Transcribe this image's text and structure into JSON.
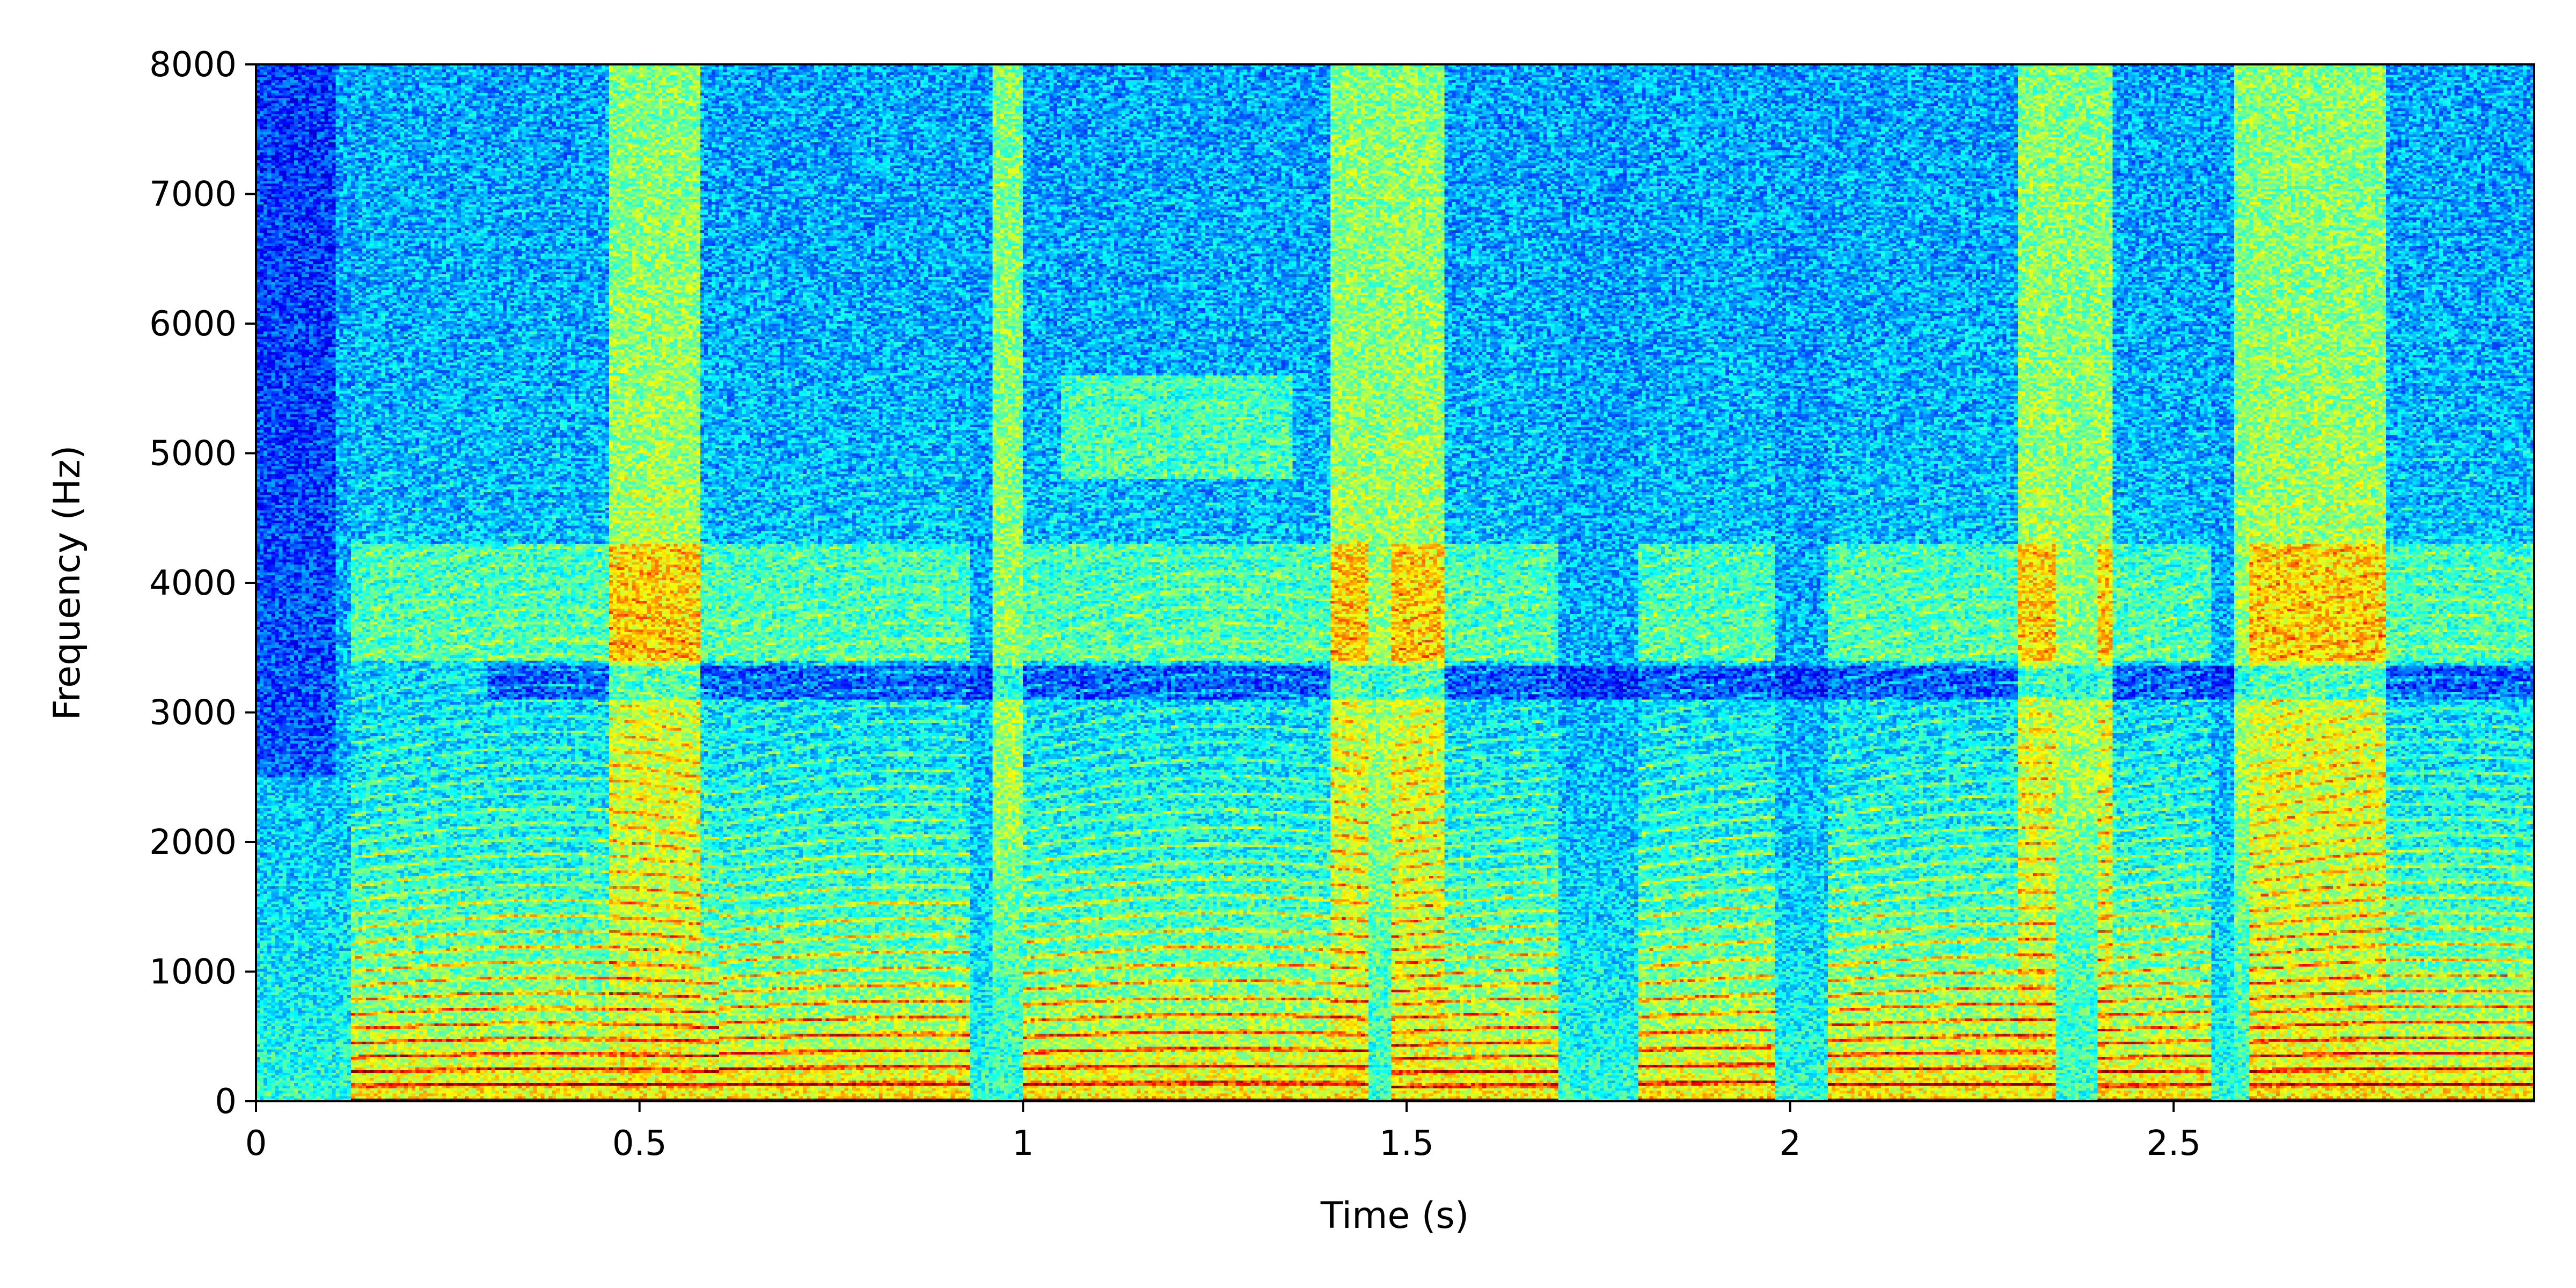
{
  "chart_data": {
    "type": "heatmap",
    "subtype": "spectrogram",
    "title": "",
    "xlabel": "Time (s)",
    "ylabel": "Frequency (Hz)",
    "xlim": [
      0,
      2.97
    ],
    "ylim": [
      0,
      8000
    ],
    "x_ticks": [
      0,
      0.5,
      1,
      1.5,
      2,
      2.5
    ],
    "x_tick_labels": [
      "0",
      "0.5",
      "1",
      "1.5",
      "2",
      "2.5"
    ],
    "y_ticks": [
      0,
      1000,
      2000,
      3000,
      4000,
      5000,
      6000,
      7000,
      8000
    ],
    "y_tick_labels": [
      "0",
      "1000",
      "2000",
      "3000",
      "4000",
      "5000",
      "6000",
      "7000",
      "8000"
    ],
    "colormap": "jet",
    "grid": false,
    "legend": "none",
    "colors": {
      "low_energy": "#00008b",
      "mid_energy": "#00ffff",
      "high_energy": "#ff0000"
    },
    "voiced_segments": [
      {
        "start": 0.12,
        "end": 0.6,
        "f0": 110
      },
      {
        "start": 0.6,
        "end": 0.93,
        "f0": 118
      },
      {
        "start": 1.0,
        "end": 1.45,
        "f0": 122
      },
      {
        "start": 1.48,
        "end": 1.7,
        "f0": 105
      },
      {
        "start": 1.8,
        "end": 1.98,
        "f0": 128
      },
      {
        "start": 2.05,
        "end": 2.35,
        "f0": 115
      },
      {
        "start": 2.4,
        "end": 2.55,
        "f0": 108
      },
      {
        "start": 2.6,
        "end": 2.97,
        "f0": 112
      }
    ],
    "fricative_segments": [
      {
        "start": 0.46,
        "end": 0.58
      },
      {
        "start": 0.96,
        "end": 1.0
      },
      {
        "start": 1.4,
        "end": 1.55
      },
      {
        "start": 2.3,
        "end": 2.42
      },
      {
        "start": 2.58,
        "end": 2.78
      }
    ],
    "notch_band_hz": [
      3100,
      3350
    ]
  }
}
